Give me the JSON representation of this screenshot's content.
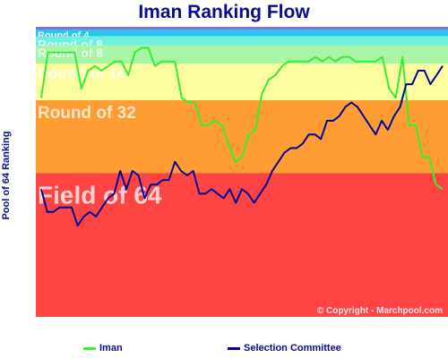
{
  "chart_data": {
    "type": "line",
    "title": "Iman Ranking Flow",
    "ylabel": "Pool of 64 Ranking",
    "copyright": "© Copyright - Marchpool.com",
    "ylim": [
      1,
      64
    ],
    "bands": [
      {
        "label": "Round of 4",
        "from": 1,
        "to": 2.5,
        "color": "#2bc4ec"
      },
      {
        "label": "Round of 8",
        "from": 2.5,
        "to": 4.5,
        "color": "#6cf0e0"
      },
      {
        "label": "Round of 8",
        "from": 4.5,
        "to": 8.5,
        "color": "#a8f5a4"
      },
      {
        "label": "Round of 16",
        "from": 8.5,
        "to": 16.5,
        "color": "#fdfda0"
      },
      {
        "label": "Round of 32",
        "from": 16.5,
        "to": 32.5,
        "color": "#ff9c33"
      },
      {
        "label": "Field of 64",
        "from": 32.5,
        "to": 64,
        "color": "#ff4444"
      }
    ],
    "series": [
      {
        "name": "Iman",
        "color": "#33ee33",
        "values": [
          16,
          6,
          6,
          6,
          6,
          6,
          14,
          10,
          9,
          10,
          9,
          8,
          8,
          11,
          6,
          5,
          5,
          9,
          8,
          8,
          8,
          16,
          17,
          17,
          22,
          22,
          21,
          22,
          26,
          30,
          29,
          24,
          23,
          15,
          12,
          11,
          9,
          8,
          8,
          8,
          8,
          7,
          8,
          7,
          8,
          7,
          7,
          8,
          8,
          8,
          8,
          7,
          14,
          16,
          7,
          22,
          22,
          29,
          29,
          35,
          36
        ]
      },
      {
        "name": "Selection Committee",
        "color": "#000099",
        "values": [
          36,
          41,
          41,
          40,
          40,
          40,
          44,
          42,
          41,
          42,
          40,
          38,
          37,
          32,
          36,
          32,
          33,
          38,
          35,
          35,
          34,
          34,
          30,
          32,
          33,
          32,
          37,
          37,
          36,
          37,
          38,
          36,
          39,
          36,
          37,
          39,
          37,
          35,
          32,
          30,
          28,
          27,
          27,
          26,
          24,
          24,
          25,
          21,
          21,
          20,
          18,
          17,
          18,
          20,
          22,
          24,
          21,
          23,
          20,
          18,
          13,
          13,
          10,
          10,
          13,
          11,
          9
        ]
      }
    ],
    "legend_placement": "bottom"
  }
}
